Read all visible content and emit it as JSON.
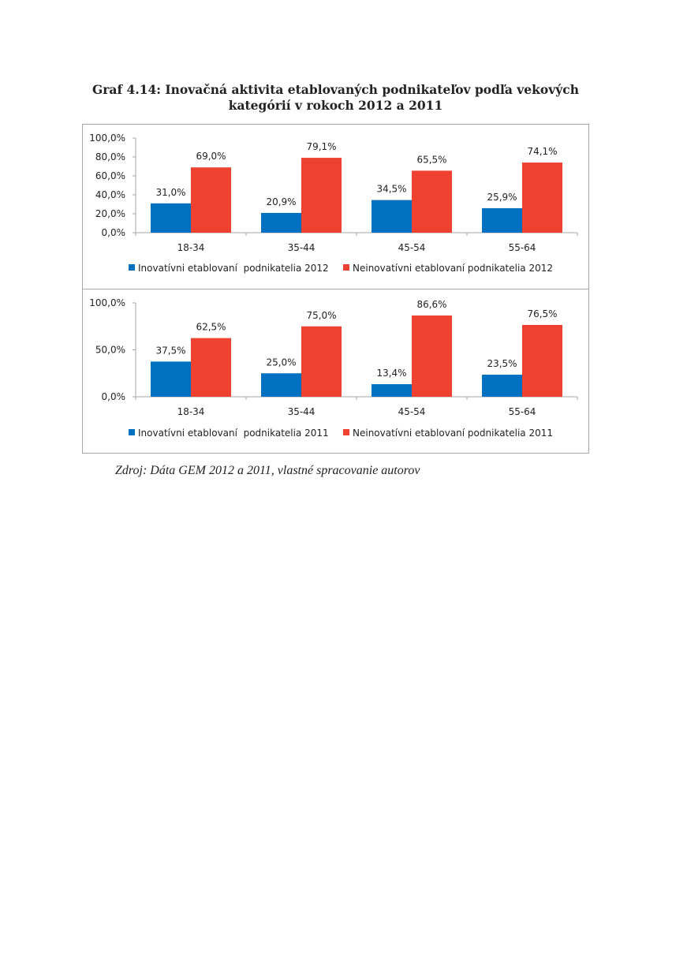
{
  "header": {
    "title_line1": "Graf 4.14: Inovačná aktivita etablovaných podnikateľov podľa vekových",
    "title_line2": "kategórií v rokoch 2012 a 2011"
  },
  "footer": {
    "source": "Zdroj: Dáta GEM 2012 a 2011, vlastné spracovanie autorov"
  },
  "colors": {
    "series_a": "#0070c0",
    "series_b": "#ee4130",
    "axis": "#a6a6a6"
  },
  "chart_data": [
    {
      "type": "bar",
      "categories": [
        "18-34",
        "35-44",
        "45-54",
        "55-64"
      ],
      "series": [
        {
          "name": "Inovatívni etablovaní  podnikatelia 2012",
          "values": [
            31.0,
            20.9,
            34.5,
            25.9
          ]
        },
        {
          "name": "Neinovatívni etablovaní podnikatelia 2012",
          "values": [
            69.0,
            79.1,
            65.5,
            74.1
          ]
        }
      ],
      "value_labels": [
        [
          "31,0%",
          "20,9%",
          "34,5%",
          "25,9%"
        ],
        [
          "69,0%",
          "79,1%",
          "65,5%",
          "74,1%"
        ]
      ],
      "ylim": [
        0,
        100
      ],
      "yticks": [
        0,
        20,
        40,
        60,
        80,
        100
      ],
      "ytick_labels": [
        "0,0%",
        "20,0%",
        "40,0%",
        "60,0%",
        "80,0%",
        "100,0%"
      ],
      "legend": "bottom",
      "grid": false
    },
    {
      "type": "bar",
      "categories": [
        "18-34",
        "35-44",
        "45-54",
        "55-64"
      ],
      "series": [
        {
          "name": "Inovatívni etablovaní  podnikatelia 2011",
          "values": [
            37.5,
            25.0,
            13.4,
            23.5
          ]
        },
        {
          "name": "Neinovatívni etablovaní podnikatelia 2011",
          "values": [
            62.5,
            75.0,
            86.6,
            76.5
          ]
        }
      ],
      "value_labels": [
        [
          "37,5%",
          "25,0%",
          "13,4%",
          "23,5%"
        ],
        [
          "62,5%",
          "75,0%",
          "86,6%",
          "76,5%"
        ]
      ],
      "ylim": [
        0,
        100
      ],
      "yticks": [
        0,
        50,
        100
      ],
      "ytick_labels": [
        "0,0%",
        "50,0%",
        "100,0%"
      ],
      "legend": "bottom",
      "grid": false
    }
  ]
}
